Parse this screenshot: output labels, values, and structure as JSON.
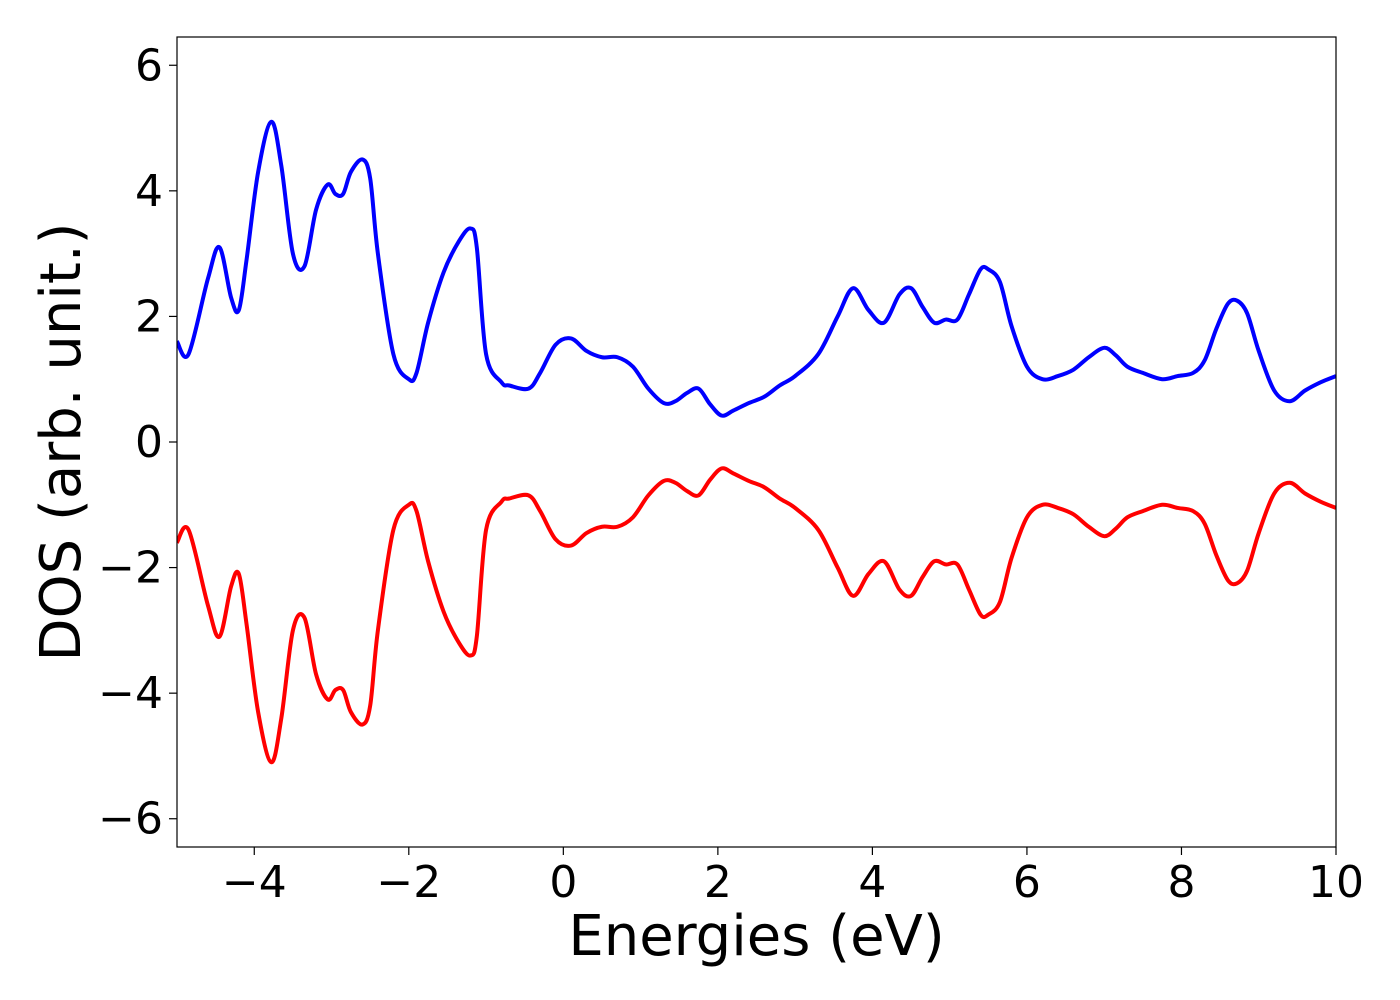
{
  "chart_data": {
    "type": "line",
    "xlabel": "Energies (eV)",
    "ylabel": "DOS (arb. unit.)",
    "xlim": [
      -5,
      10
    ],
    "ylim": [
      -6.45,
      6.45
    ],
    "xticks": [
      -4,
      -2,
      0,
      2,
      4,
      6,
      8,
      10
    ],
    "yticks": [
      -6,
      -4,
      -2,
      0,
      2,
      4,
      6
    ],
    "xtick_labels": [
      "−4",
      "−2",
      "0",
      "2",
      "4",
      "6",
      "8",
      "10"
    ],
    "ytick_labels": [
      "−6",
      "−4",
      "−2",
      "0",
      "2",
      "4",
      "6"
    ],
    "grid": false,
    "series": [
      {
        "color": "#0000ff",
        "x": [
          -5.0,
          -4.85,
          -4.6,
          -4.45,
          -4.3,
          -4.2,
          -4.1,
          -3.95,
          -3.78,
          -3.65,
          -3.5,
          -3.35,
          -3.2,
          -3.05,
          -2.95,
          -2.85,
          -2.75,
          -2.6,
          -2.5,
          -2.4,
          -2.2,
          -2.0,
          -1.9,
          -1.75,
          -1.55,
          -1.35,
          -1.2,
          -1.12,
          -1.0,
          -0.8,
          -0.7,
          -0.45,
          -0.3,
          -0.1,
          0.1,
          0.3,
          0.5,
          0.7,
          0.9,
          1.1,
          1.3,
          1.45,
          1.6,
          1.75,
          1.9,
          2.05,
          2.2,
          2.4,
          2.6,
          2.8,
          3.0,
          3.3,
          3.55,
          3.75,
          3.95,
          4.15,
          4.35,
          4.5,
          4.65,
          4.8,
          4.95,
          5.1,
          5.25,
          5.4,
          5.5,
          5.65,
          5.8,
          6.0,
          6.2,
          6.4,
          6.6,
          6.8,
          7.0,
          7.15,
          7.3,
          7.5,
          7.75,
          7.95,
          8.15,
          8.3,
          8.45,
          8.6,
          8.72,
          8.85,
          9.0,
          9.2,
          9.4,
          9.6,
          9.8,
          10.0
        ],
        "values": [
          1.6,
          1.4,
          2.6,
          3.1,
          2.3,
          2.1,
          2.9,
          4.3,
          5.1,
          4.4,
          3.0,
          2.8,
          3.7,
          4.1,
          3.95,
          3.95,
          4.3,
          4.5,
          4.2,
          3.0,
          1.4,
          1.0,
          1.1,
          1.9,
          2.7,
          3.2,
          3.4,
          3.1,
          1.4,
          0.95,
          0.9,
          0.85,
          1.1,
          1.55,
          1.65,
          1.45,
          1.35,
          1.35,
          1.2,
          0.85,
          0.62,
          0.65,
          0.78,
          0.85,
          0.6,
          0.42,
          0.5,
          0.62,
          0.72,
          0.9,
          1.05,
          1.4,
          2.0,
          2.45,
          2.1,
          1.9,
          2.35,
          2.45,
          2.15,
          1.9,
          1.95,
          1.95,
          2.35,
          2.75,
          2.75,
          2.55,
          1.85,
          1.2,
          1.0,
          1.05,
          1.15,
          1.35,
          1.5,
          1.38,
          1.2,
          1.1,
          1.0,
          1.05,
          1.1,
          1.3,
          1.8,
          2.2,
          2.25,
          2.05,
          1.45,
          0.82,
          0.65,
          0.82,
          0.95,
          1.05
        ]
      },
      {
        "color": "#ff0000",
        "x": [
          -5.0,
          -4.85,
          -4.6,
          -4.45,
          -4.3,
          -4.2,
          -4.1,
          -3.95,
          -3.78,
          -3.65,
          -3.5,
          -3.35,
          -3.2,
          -3.05,
          -2.95,
          -2.85,
          -2.75,
          -2.6,
          -2.5,
          -2.4,
          -2.2,
          -2.0,
          -1.9,
          -1.75,
          -1.55,
          -1.35,
          -1.2,
          -1.12,
          -1.0,
          -0.8,
          -0.7,
          -0.45,
          -0.3,
          -0.1,
          0.1,
          0.3,
          0.5,
          0.7,
          0.9,
          1.1,
          1.3,
          1.45,
          1.6,
          1.75,
          1.9,
          2.05,
          2.2,
          2.4,
          2.6,
          2.8,
          3.0,
          3.3,
          3.55,
          3.75,
          3.95,
          4.15,
          4.35,
          4.5,
          4.65,
          4.8,
          4.95,
          5.1,
          5.25,
          5.4,
          5.5,
          5.65,
          5.8,
          6.0,
          6.2,
          6.4,
          6.6,
          6.8,
          7.0,
          7.15,
          7.3,
          7.5,
          7.75,
          7.95,
          8.15,
          8.3,
          8.45,
          8.6,
          8.72,
          8.85,
          9.0,
          9.2,
          9.4,
          9.6,
          9.8,
          10.0
        ],
        "values": [
          -1.6,
          -1.4,
          -2.6,
          -3.1,
          -2.3,
          -2.1,
          -2.9,
          -4.3,
          -5.1,
          -4.4,
          -3.0,
          -2.8,
          -3.7,
          -4.1,
          -3.95,
          -3.95,
          -4.3,
          -4.5,
          -4.2,
          -3.0,
          -1.4,
          -1.0,
          -1.1,
          -1.9,
          -2.7,
          -3.2,
          -3.4,
          -3.1,
          -1.4,
          -0.95,
          -0.9,
          -0.85,
          -1.1,
          -1.55,
          -1.65,
          -1.45,
          -1.35,
          -1.35,
          -1.2,
          -0.85,
          -0.62,
          -0.65,
          -0.78,
          -0.85,
          -0.6,
          -0.42,
          -0.5,
          -0.62,
          -0.72,
          -0.9,
          -1.05,
          -1.4,
          -2.0,
          -2.45,
          -2.1,
          -1.9,
          -2.35,
          -2.45,
          -2.15,
          -1.9,
          -1.95,
          -1.95,
          -2.35,
          -2.75,
          -2.75,
          -2.55,
          -1.85,
          -1.2,
          -1.0,
          -1.05,
          -1.15,
          -1.35,
          -1.5,
          -1.38,
          -1.2,
          -1.1,
          -1.0,
          -1.05,
          -1.1,
          -1.3,
          -1.8,
          -2.2,
          -2.25,
          -2.05,
          -1.45,
          -0.82,
          -0.65,
          -0.82,
          -0.95,
          -1.05
        ]
      }
    ]
  }
}
